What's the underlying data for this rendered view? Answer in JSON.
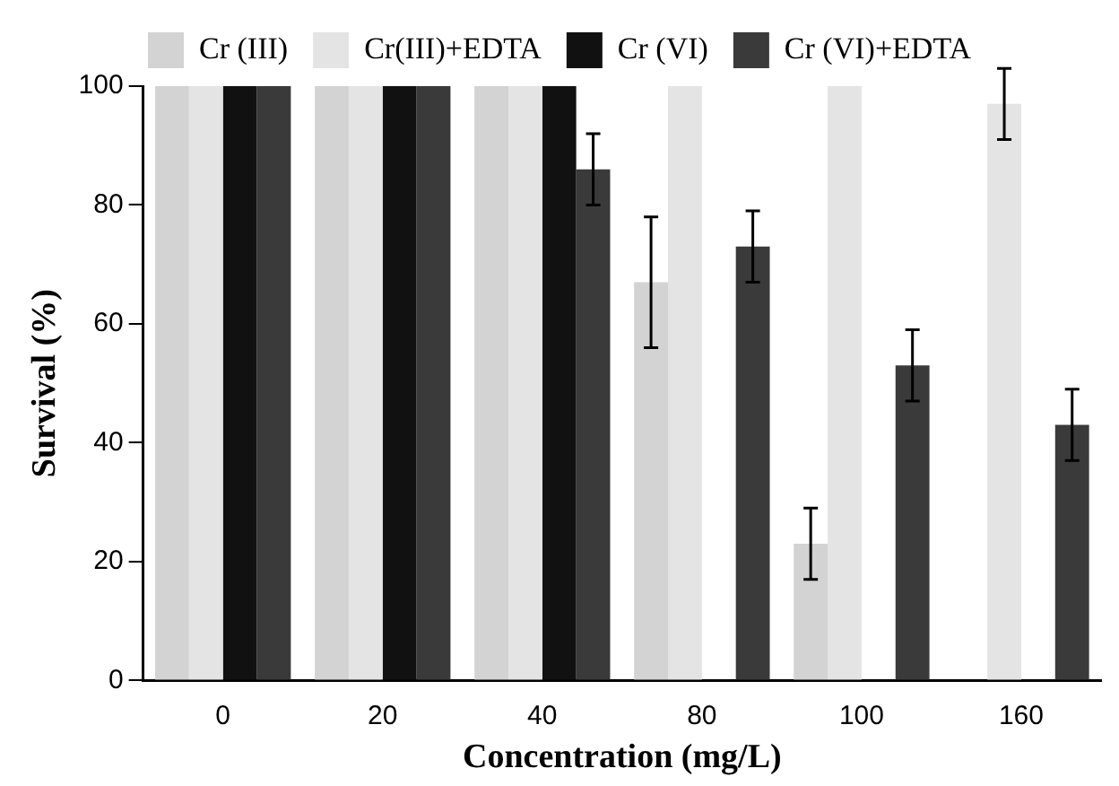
{
  "chart_data": {
    "type": "bar",
    "xlabel": "Concentration (mg/L)",
    "ylabel": "Survival (%)",
    "categories": [
      "0",
      "20",
      "40",
      "80",
      "100",
      "160"
    ],
    "series": [
      {
        "name": "Cr (III)",
        "color": "#d3d3d3",
        "values": [
          100,
          100,
          100,
          67,
          23,
          0
        ],
        "errors": [
          null,
          null,
          null,
          11,
          6,
          null
        ]
      },
      {
        "name": "Cr(III)+EDTA",
        "color": "#e4e4e4",
        "values": [
          100,
          100,
          100,
          100,
          100,
          97
        ],
        "errors": [
          null,
          null,
          null,
          null,
          null,
          6
        ]
      },
      {
        "name": "Cr (VI)",
        "color": "#111111",
        "values": [
          100,
          100,
          100,
          0,
          0,
          0
        ]
      },
      {
        "name": "Cr (VI)+EDTA",
        "color": "#3a3a3a",
        "values": [
          100,
          100,
          86,
          73,
          53,
          43
        ],
        "errors": [
          null,
          null,
          6,
          6,
          6,
          6
        ]
      }
    ],
    "ylim": [
      0,
      100
    ],
    "yticks": [
      0,
      20,
      40,
      60,
      80,
      100
    ],
    "grid": false,
    "legend": "top"
  }
}
